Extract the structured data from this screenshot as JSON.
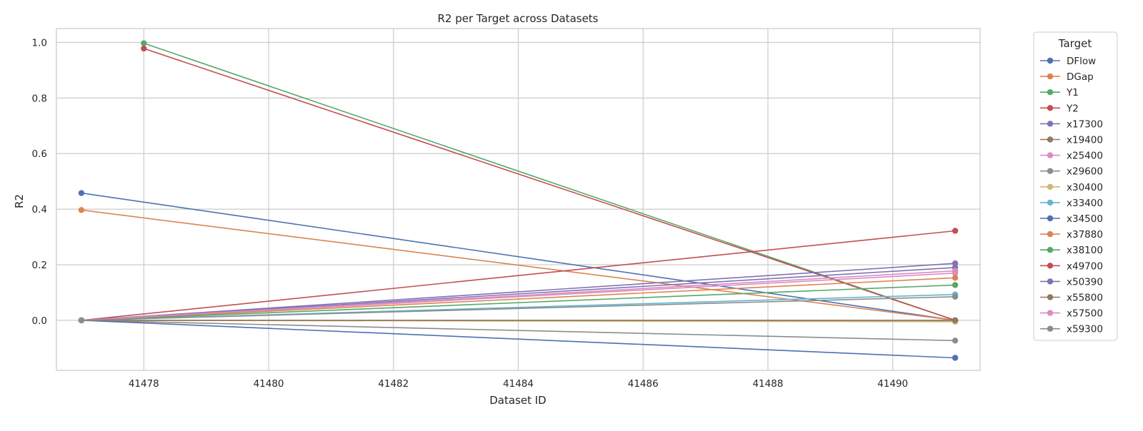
{
  "chart_data": {
    "type": "line",
    "title": "R2 per Target across Datasets",
    "xlabel": "Dataset ID",
    "ylabel": "R2",
    "xlim": [
      41476.6,
      41491.4
    ],
    "ylim": [
      -0.18,
      1.05
    ],
    "x_ticks": [
      41478,
      41480,
      41482,
      41484,
      41486,
      41488,
      41490
    ],
    "y_ticks": [
      0.0,
      0.2,
      0.4,
      0.6,
      0.8,
      1.0
    ],
    "x_tick_labels": [
      "41478",
      "41480",
      "41482",
      "41484",
      "41486",
      "41488",
      "41490"
    ],
    "y_tick_labels": [
      "0.0",
      "0.2",
      "0.4",
      "0.6",
      "0.8",
      "1.0"
    ],
    "grid": true,
    "legend": {
      "title": "Target",
      "placement": "outside right"
    },
    "series": [
      {
        "name": "DFlow",
        "color": "#4c72b0",
        "points": [
          [
            41477,
            0.458
          ],
          [
            41491,
            0.0
          ]
        ]
      },
      {
        "name": "DGap",
        "color": "#dd8452",
        "points": [
          [
            41477,
            0.397
          ],
          [
            41491,
            0.0
          ]
        ]
      },
      {
        "name": "Y1",
        "color": "#55a868",
        "points": [
          [
            41478,
            0.997
          ],
          [
            41491,
            0.0
          ]
        ]
      },
      {
        "name": "Y2",
        "color": "#c44e52",
        "points": [
          [
            41478,
            0.978
          ],
          [
            41491,
            0.0
          ]
        ]
      },
      {
        "name": "x17300",
        "color": "#8172b3",
        "points": [
          [
            41477,
            0.0
          ],
          [
            41491,
            0.19
          ]
        ]
      },
      {
        "name": "x19400",
        "color": "#937860",
        "points": [
          [
            41477,
            0.0
          ],
          [
            41491,
            0.0
          ]
        ]
      },
      {
        "name": "x25400",
        "color": "#da8bc3",
        "points": [
          [
            41477,
            0.0
          ],
          [
            41491,
            0.17
          ]
        ]
      },
      {
        "name": "x29600",
        "color": "#8c8c8c",
        "points": [
          [
            41477,
            0.0
          ],
          [
            41491,
            -0.073
          ]
        ]
      },
      {
        "name": "x30400",
        "color": "#ccb974",
        "points": [
          [
            41477,
            0.0
          ],
          [
            41491,
            -0.005
          ]
        ]
      },
      {
        "name": "x33400",
        "color": "#64b5cd",
        "points": [
          [
            41477,
            0.0
          ],
          [
            41491,
            0.093
          ]
        ]
      },
      {
        "name": "x34500",
        "color": "#4c72b0",
        "points": [
          [
            41477,
            0.0
          ],
          [
            41491,
            -0.135
          ]
        ]
      },
      {
        "name": "x37880",
        "color": "#dd8452",
        "points": [
          [
            41477,
            0.0
          ],
          [
            41491,
            0.153
          ]
        ]
      },
      {
        "name": "x38100",
        "color": "#55a868",
        "points": [
          [
            41477,
            0.0
          ],
          [
            41491,
            0.127
          ]
        ]
      },
      {
        "name": "x49700",
        "color": "#c44e52",
        "points": [
          [
            41477,
            0.0
          ],
          [
            41491,
            0.322
          ]
        ]
      },
      {
        "name": "x50390",
        "color": "#8172b3",
        "points": [
          [
            41477,
            0.0
          ],
          [
            41491,
            0.205
          ]
        ]
      },
      {
        "name": "x55800",
        "color": "#937860",
        "points": [
          [
            41477,
            0.0
          ],
          [
            41491,
            0.0
          ]
        ]
      },
      {
        "name": "x57500",
        "color": "#da8bc3",
        "points": [
          [
            41477,
            0.0
          ],
          [
            41491,
            0.178
          ]
        ]
      },
      {
        "name": "x59300",
        "color": "#8c8c8c",
        "points": [
          [
            41477,
            0.0
          ],
          [
            41491,
            0.085
          ]
        ]
      }
    ]
  }
}
